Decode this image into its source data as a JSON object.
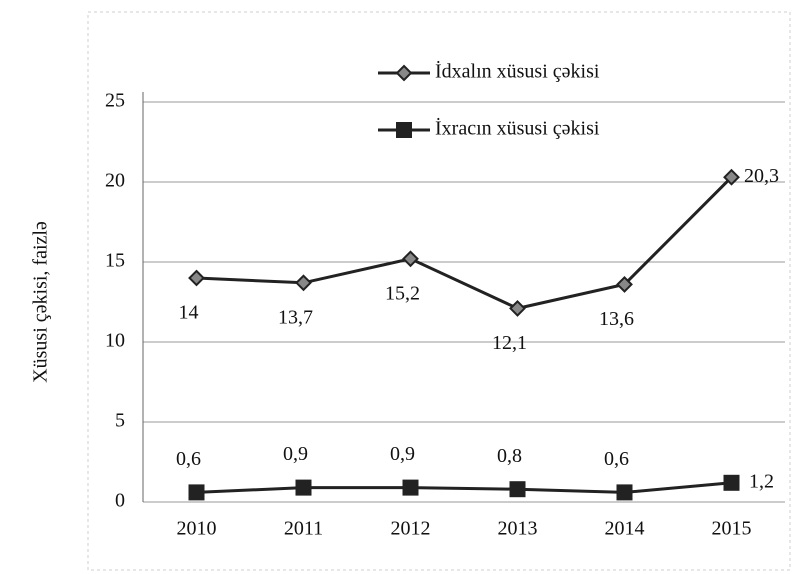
{
  "chart_data": {
    "type": "line",
    "y_label": "Xüsusi çəkisi, faizlə",
    "categories": [
      "2010",
      "2011",
      "2012",
      "2013",
      "2014",
      "2015"
    ],
    "series": [
      {
        "name": "İdxalın xüsusi çəkisi",
        "color": "#222222",
        "marker": "diamond",
        "values": [
          14,
          13.7,
          15.2,
          12.1,
          13.6,
          20.3
        ],
        "value_labels": [
          "14",
          "13,7",
          "15,2",
          "12,1",
          "13,6",
          "20,3"
        ]
      },
      {
        "name": "İxracın xüsusi çəkisi",
        "color": "#222222",
        "marker": "square",
        "values": [
          0.6,
          0.9,
          0.9,
          0.8,
          0.6,
          1.2
        ],
        "value_labels": [
          "0,6",
          "0,9",
          "0,9",
          "0,8",
          "0,6",
          "1,2"
        ]
      }
    ],
    "ylim": [
      0,
      25
    ],
    "yticks": [
      0,
      5,
      10,
      15,
      20,
      25
    ],
    "grid": true
  }
}
